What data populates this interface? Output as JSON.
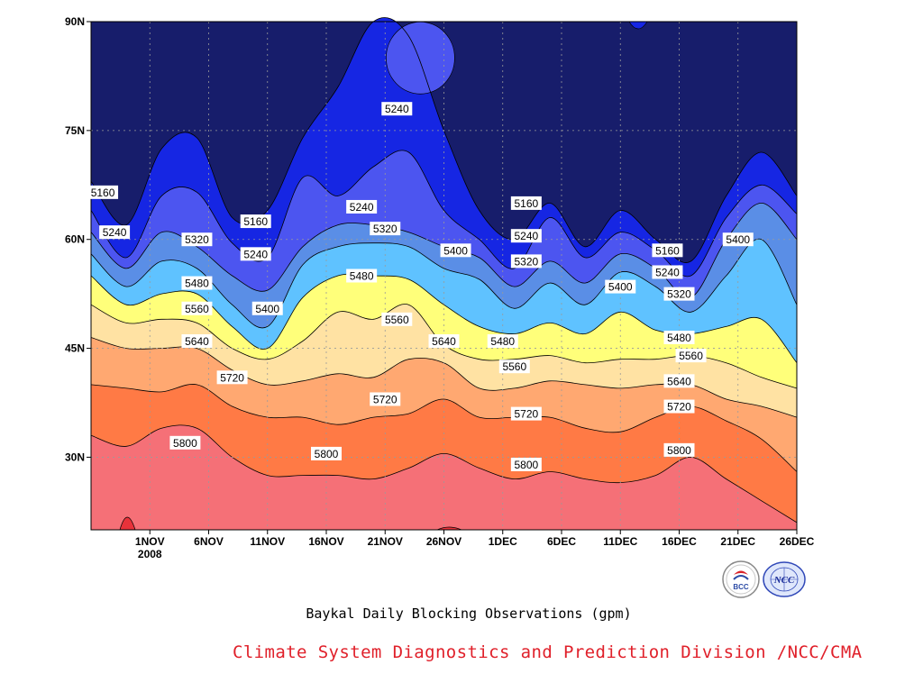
{
  "title": "Baykal Daily Blocking Observations (gpm)",
  "credit": "Climate System Diagnostics and Prediction Division /NCC/CMA",
  "logos": {
    "left_text": "BCC",
    "right_text": "NCC"
  },
  "chart_data": {
    "type": "contour",
    "title": "Baykal Daily Blocking Observations (gpm)",
    "x_ticks": [
      "1NOV",
      "6NOV",
      "11NOV",
      "16NOV",
      "21NOV",
      "26NOV",
      "1DEC",
      "6DEC",
      "11DEC",
      "16DEC",
      "21DEC",
      "26DEC"
    ],
    "x_year_label": "2008",
    "y_ticks": [
      "30N",
      "45N",
      "60N",
      "75N",
      "90N"
    ],
    "x_range": [
      "2008-10-27",
      "2008-12-26"
    ],
    "y_range": [
      20,
      90
    ],
    "grid": true,
    "levels": [
      5160,
      5240,
      5320,
      5400,
      5480,
      5560,
      5640,
      5720,
      5800
    ],
    "colors": [
      "#171d6b",
      "#1626e3",
      "#4c55f0",
      "#5a8ee6",
      "#5fc2ff",
      "#ffff7a",
      "#ffe2a3",
      "#ffa871",
      "#ff7a45",
      "#f57077"
    ],
    "dates": [
      "2008-10-27",
      "2008-10-30",
      "2008-11-02",
      "2008-11-05",
      "2008-11-08",
      "2008-11-11",
      "2008-11-14",
      "2008-11-17",
      "2008-11-20",
      "2008-11-23",
      "2008-11-26",
      "2008-11-29",
      "2008-12-02",
      "2008-12-05",
      "2008-12-08",
      "2008-12-11",
      "2008-12-14",
      "2008-12-17",
      "2008-12-20",
      "2008-12-23",
      "2008-12-26"
    ],
    "contours": [
      {
        "level": 5160,
        "lat": [
          68.0,
          62.0,
          72.5,
          74.0,
          63.0,
          64.0,
          74.0,
          81.0,
          90.0,
          88.0,
          75.0,
          64.0,
          60.0,
          65.0,
          59.0,
          64.0,
          60.0,
          57.0,
          66.0,
          72.0,
          66.0
        ]
      },
      {
        "level": 5240,
        "lat": [
          64.0,
          57.5,
          66.0,
          66.5,
          59.5,
          57.5,
          68.5,
          66.0,
          70.0,
          72.0,
          64.0,
          60.0,
          56.0,
          63.0,
          57.5,
          61.0,
          58.5,
          55.0,
          63.0,
          67.5,
          63.5
        ]
      },
      {
        "level": 5320,
        "lat": [
          61.0,
          56.0,
          61.0,
          59.0,
          55.0,
          53.0,
          59.0,
          62.0,
          62.0,
          61.0,
          59.0,
          57.5,
          53.5,
          57.0,
          54.0,
          58.0,
          56.0,
          52.0,
          60.0,
          65.0,
          60.0
        ]
      },
      {
        "level": 5400,
        "lat": [
          58.0,
          53.5,
          57.0,
          56.0,
          51.0,
          48.0,
          56.5,
          59.0,
          59.5,
          59.0,
          56.0,
          54.5,
          50.5,
          54.0,
          51.0,
          55.5,
          53.5,
          50.0,
          55.0,
          60.0,
          51.0
        ]
      },
      {
        "level": 5480,
        "lat": [
          55.0,
          51.0,
          52.5,
          52.5,
          48.0,
          45.0,
          52.0,
          55.0,
          55.0,
          54.5,
          51.0,
          48.0,
          47.0,
          48.5,
          47.0,
          50.0,
          47.5,
          47.0,
          48.0,
          49.0,
          43.0
        ]
      },
      {
        "level": 5560,
        "lat": [
          51.0,
          48.5,
          49.0,
          48.5,
          45.0,
          43.5,
          46.0,
          50.0,
          49.0,
          51.0,
          45.5,
          43.5,
          43.5,
          44.0,
          43.0,
          43.5,
          43.5,
          44.0,
          43.0,
          41.0,
          39.5
        ]
      },
      {
        "level": 5640,
        "lat": [
          46.5,
          45.0,
          45.0,
          45.0,
          42.0,
          40.0,
          40.5,
          41.5,
          41.0,
          43.5,
          43.0,
          39.5,
          39.5,
          40.5,
          40.0,
          39.5,
          40.0,
          40.0,
          38.0,
          37.0,
          35.5
        ]
      },
      {
        "level": 5720,
        "lat": [
          40.0,
          39.5,
          39.0,
          40.0,
          37.0,
          35.5,
          35.5,
          34.5,
          35.5,
          36.0,
          38.0,
          35.5,
          35.5,
          35.5,
          34.0,
          33.5,
          35.5,
          37.0,
          35.0,
          32.5,
          28.0
        ]
      },
      {
        "level": 5800,
        "lat": [
          33.0,
          31.5,
          34.0,
          34.0,
          30.0,
          27.5,
          27.5,
          27.5,
          27.0,
          28.5,
          30.5,
          28.5,
          27.0,
          28.0,
          27.0,
          26.5,
          27.5,
          30.0,
          27.0,
          24.0,
          21.0
        ]
      }
    ],
    "contour_labels": [
      {
        "text": "5160",
        "x": "2008-10-28",
        "y": 66.5
      },
      {
        "text": "5240",
        "x": "2008-10-29",
        "y": 61.0
      },
      {
        "text": "5320",
        "x": "2008-11-05",
        "y": 60.0
      },
      {
        "text": "5480",
        "x": "2008-11-05",
        "y": 54.0
      },
      {
        "text": "5560",
        "x": "2008-11-05",
        "y": 50.5
      },
      {
        "text": "5640",
        "x": "2008-11-05",
        "y": 46.0
      },
      {
        "text": "5720",
        "x": "2008-11-08",
        "y": 41.0
      },
      {
        "text": "5800",
        "x": "2008-11-04",
        "y": 32.0
      },
      {
        "text": "5160",
        "x": "2008-11-10",
        "y": 62.5
      },
      {
        "text": "5240",
        "x": "2008-11-10",
        "y": 58.0
      },
      {
        "text": "5400",
        "x": "2008-11-11",
        "y": 50.5
      },
      {
        "text": "5240",
        "x": "2008-11-19",
        "y": 64.5
      },
      {
        "text": "5320",
        "x": "2008-11-21",
        "y": 61.5
      },
      {
        "text": "5480",
        "x": "2008-11-19",
        "y": 55.0
      },
      {
        "text": "5560",
        "x": "2008-11-22",
        "y": 49.0
      },
      {
        "text": "5720",
        "x": "2008-11-21",
        "y": 38.0
      },
      {
        "text": "5800",
        "x": "2008-11-16",
        "y": 30.5
      },
      {
        "text": "5240",
        "x": "2008-11-22",
        "y": 78.0
      },
      {
        "text": "5400",
        "x": "2008-11-27",
        "y": 58.5
      },
      {
        "text": "5640",
        "x": "2008-11-26",
        "y": 46.0
      },
      {
        "text": "5160",
        "x": "2008-12-03",
        "y": 65.0
      },
      {
        "text": "5240",
        "x": "2008-12-03",
        "y": 60.5
      },
      {
        "text": "5320",
        "x": "2008-12-03",
        "y": 57.0
      },
      {
        "text": "5480",
        "x": "2008-12-01",
        "y": 46.0
      },
      {
        "text": "5560",
        "x": "2008-12-02",
        "y": 42.5
      },
      {
        "text": "5720",
        "x": "2008-12-03",
        "y": 36.0
      },
      {
        "text": "5800",
        "x": "2008-12-03",
        "y": 29.0
      },
      {
        "text": "5400",
        "x": "2008-12-11",
        "y": 53.5
      },
      {
        "text": "5160",
        "x": "2008-12-15",
        "y": 58.5
      },
      {
        "text": "5240",
        "x": "2008-12-15",
        "y": 55.5
      },
      {
        "text": "5320",
        "x": "2008-12-16",
        "y": 52.5
      },
      {
        "text": "5480",
        "x": "2008-12-16",
        "y": 46.5
      },
      {
        "text": "5560",
        "x": "2008-12-17",
        "y": 44.0
      },
      {
        "text": "5640",
        "x": "2008-12-16",
        "y": 40.5
      },
      {
        "text": "5720",
        "x": "2008-12-16",
        "y": 37.0
      },
      {
        "text": "5800",
        "x": "2008-12-16",
        "y": 31.0
      },
      {
        "text": "5400",
        "x": "2008-12-21",
        "y": 60.0
      }
    ]
  }
}
